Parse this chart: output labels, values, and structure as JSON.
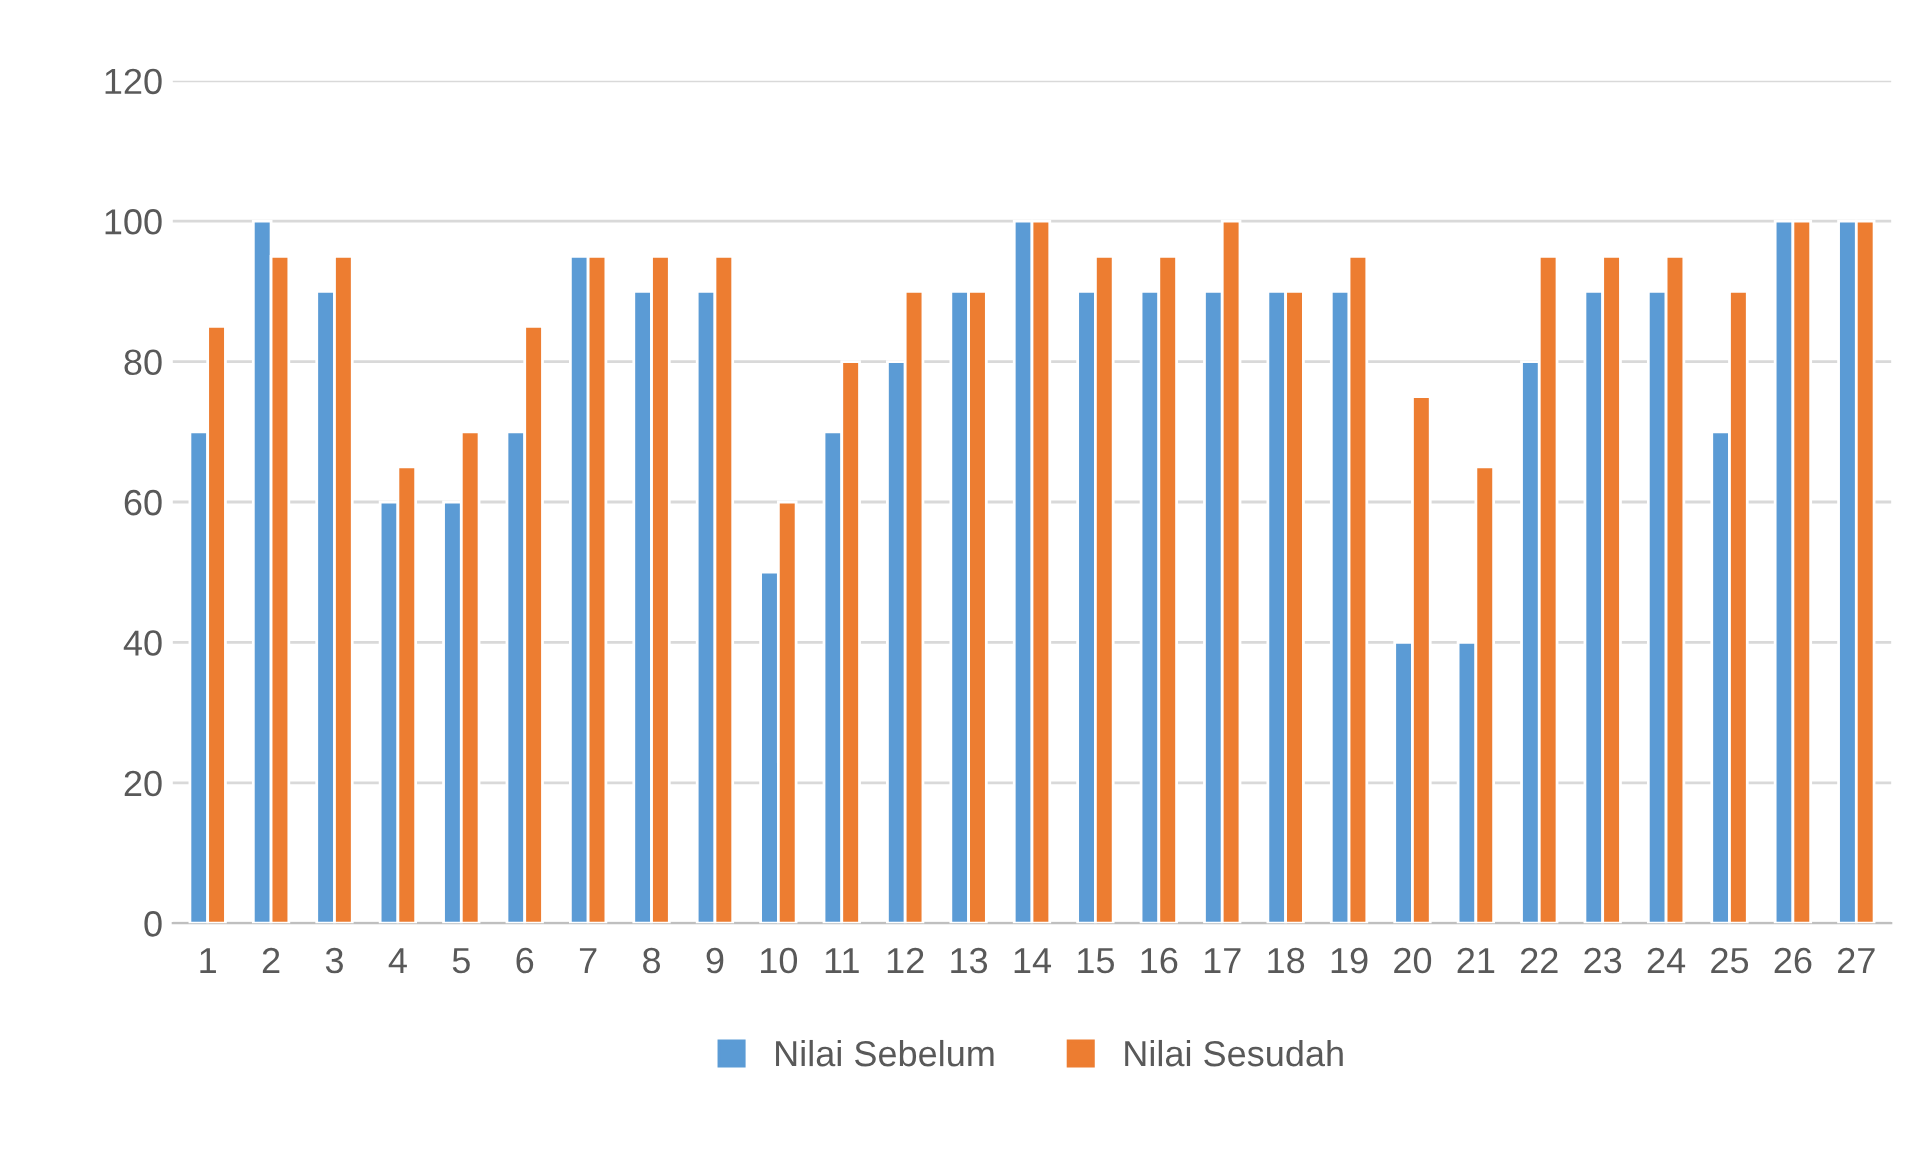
{
  "chart_data": {
    "type": "bar",
    "categories": [
      "1",
      "2",
      "3",
      "4",
      "5",
      "6",
      "7",
      "8",
      "9",
      "10",
      "11",
      "12",
      "13",
      "14",
      "15",
      "16",
      "17",
      "18",
      "19",
      "20",
      "21",
      "22",
      "23",
      "24",
      "25",
      "26",
      "27"
    ],
    "series": [
      {
        "name": "Nilai Sebelum",
        "color": "#5b9bd5",
        "values": [
          70,
          100,
          90,
          60,
          60,
          70,
          95,
          90,
          90,
          50,
          70,
          80,
          90,
          100,
          90,
          90,
          90,
          90,
          90,
          40,
          40,
          80,
          90,
          90,
          70,
          100,
          100
        ]
      },
      {
        "name": "Nilai Sesudah",
        "color": "#ed7d31",
        "values": [
          85,
          95,
          95,
          65,
          70,
          85,
          95,
          95,
          95,
          60,
          80,
          90,
          90,
          100,
          95,
          95,
          100,
          90,
          95,
          75,
          65,
          95,
          95,
          95,
          90,
          100,
          100
        ]
      }
    ],
    "ylim": [
      0,
      120
    ],
    "yticks": [
      0,
      20,
      40,
      60,
      80,
      100,
      120
    ],
    "grid": "y",
    "legend": "bottom"
  }
}
